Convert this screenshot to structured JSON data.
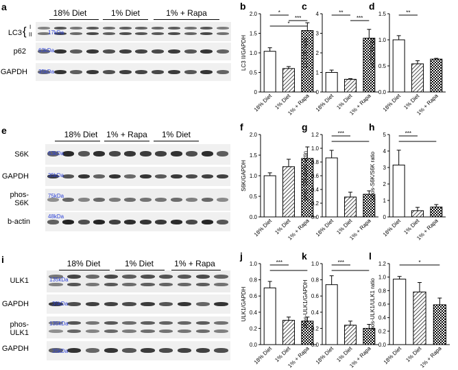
{
  "panels": [
    {
      "id": "a",
      "label": "a",
      "groups": [
        "18% Diet",
        "1% Diet",
        "1% + Rapa"
      ],
      "rows": [
        {
          "label": "LC3",
          "sub": [
            "I",
            "II"
          ],
          "kda": "17kDa"
        },
        {
          "label": "p62",
          "kda": "63kDa"
        },
        {
          "label": "GAPDH",
          "kda": "35kDa"
        }
      ]
    },
    {
      "id": "e",
      "label": "e",
      "groups": [
        "18% Diet",
        "1% + Rapa",
        "1% Diet"
      ],
      "rows": [
        {
          "label": "S6K",
          "kda": "63kDa"
        },
        {
          "label": "GAPDH",
          "kda": "35kDa"
        },
        {
          "label": "phos-\nS6K",
          "kda": "75kDa"
        },
        {
          "label": "b-actin",
          "kda": "48kDa"
        }
      ]
    },
    {
      "id": "i",
      "label": "i",
      "groups": [
        "18% Diet",
        "1% Diet",
        "1% + Rapa"
      ],
      "rows": [
        {
          "label": "ULK1",
          "kda": "135kDa"
        },
        {
          "label": "GAPDH",
          "kda": "35kDa"
        },
        {
          "label": "phos-\nULK1",
          "kda": "135kDa"
        },
        {
          "label": "GAPDH",
          "kda": "35kDa"
        }
      ]
    }
  ],
  "chart_data": [
    {
      "id": "b",
      "label": "b",
      "type": "bar",
      "categories": [
        "18% Diet",
        "1% Diet",
        "1% + Rapa"
      ],
      "values": [
        1.04,
        0.6,
        1.57
      ],
      "errors": [
        0.09,
        0.05,
        0.2
      ],
      "ylabel": "LC3 II/GAPDH",
      "ylim": [
        0,
        2.0
      ],
      "yticks": [
        "0",
        "0.5",
        "1.0",
        "1.5",
        "2.0"
      ],
      "sig": [
        {
          "from": 0,
          "to": 1,
          "label": "*"
        },
        {
          "from": 1,
          "to": 2,
          "label": "***"
        },
        {
          "from": 0,
          "to": 2,
          "label": "*"
        }
      ]
    },
    {
      "id": "c",
      "label": "c",
      "type": "bar",
      "categories": [
        "18% Diet",
        "1% Diet",
        "1% + Rapa"
      ],
      "values": [
        1.0,
        0.65,
        2.75
      ],
      "errors": [
        0.12,
        0.03,
        0.45
      ],
      "ylabel": "LC3 I/II ratio",
      "ylim": [
        0,
        4
      ],
      "yticks": [
        "0",
        "1",
        "2",
        "3",
        "4"
      ],
      "sig": [
        {
          "from": 0,
          "to": 1,
          "label": "**"
        },
        {
          "from": 1,
          "to": 2,
          "label": "***"
        }
      ]
    },
    {
      "id": "d",
      "label": "d",
      "type": "bar",
      "categories": [
        "18% Diet",
        "1% Diet",
        "1% + Rapa"
      ],
      "values": [
        1.0,
        0.54,
        0.63
      ],
      "errors": [
        0.08,
        0.06,
        0.015
      ],
      "ylabel": "p62/GAPDH",
      "ylim": [
        0,
        1.5
      ],
      "yticks": [
        "0.0",
        "0.5",
        "1.0",
        "1.5"
      ],
      "sig": [
        {
          "from": 0,
          "to": 1,
          "label": "**"
        }
      ]
    },
    {
      "id": "f",
      "label": "f",
      "type": "bar",
      "categories": [
        "18% Diet",
        "1% Diet",
        "1% + Rapa"
      ],
      "values": [
        1.0,
        1.22,
        1.42
      ],
      "errors": [
        0.07,
        0.18,
        0.28
      ],
      "ylabel": "S6K/GAPDH",
      "ylim": [
        0,
        2.0
      ],
      "yticks": [
        "0.0",
        "0.5",
        "1.0",
        "1.5",
        "2.0"
      ],
      "sig": []
    },
    {
      "id": "g",
      "label": "g",
      "type": "bar",
      "categories": [
        "18% Diet",
        "1% Diet",
        "1% + Rapa"
      ],
      "values": [
        0.86,
        0.29,
        0.33
      ],
      "errors": [
        0.11,
        0.07,
        0.05
      ],
      "ylabel": "phos-S6K/beta actin",
      "ylim": [
        0,
        1.2
      ],
      "yticks": [
        "0.0",
        "0.2",
        "0.4",
        "0.6",
        "0.8",
        "1.0",
        "1.2"
      ],
      "sig": [
        {
          "from": 0,
          "to": 1,
          "label": "***"
        },
        {
          "from": 0,
          "to": 2,
          "label": ""
        }
      ]
    },
    {
      "id": "h",
      "label": "h",
      "type": "bar",
      "categories": [
        "18% Diet",
        "1% Diet",
        "1% + Rapa"
      ],
      "values": [
        3.15,
        0.38,
        0.6
      ],
      "errors": [
        0.9,
        0.2,
        0.15
      ],
      "ylabel": "phos-S6K/S6K ratio",
      "ylim": [
        0,
        5
      ],
      "yticks": [
        "0",
        "1",
        "2",
        "3",
        "4",
        "5"
      ],
      "sig": [
        {
          "from": 0,
          "to": 1,
          "label": "***"
        },
        {
          "from": 0,
          "to": 2,
          "label": ""
        }
      ]
    },
    {
      "id": "j",
      "label": "j",
      "type": "bar",
      "categories": [
        "18% Diet",
        "1% Diet",
        "1% + Rapa"
      ],
      "values": [
        0.7,
        0.3,
        0.29
      ],
      "errors": [
        0.08,
        0.04,
        0.05
      ],
      "ylabel": "ULK1/GAPDH",
      "ylim": [
        0,
        1.0
      ],
      "yticks": [
        "0.0",
        "0.2",
        "0.4",
        "0.6",
        "0.8",
        "1.0"
      ],
      "sig": [
        {
          "from": 0,
          "to": 1,
          "label": "***"
        },
        {
          "from": 0,
          "to": 2,
          "label": ""
        }
      ]
    },
    {
      "id": "k",
      "label": "k",
      "type": "bar",
      "categories": [
        "18% Diet",
        "1% Diet",
        "1% + Rapa"
      ],
      "values": [
        0.74,
        0.24,
        0.2
      ],
      "errors": [
        0.11,
        0.05,
        0.05
      ],
      "ylabel": "phos-ULK1/GAPDH",
      "ylim": [
        0,
        1.0
      ],
      "yticks": [
        "0.0",
        "0.2",
        "0.4",
        "0.6",
        "0.8",
        "1.0"
      ],
      "sig": [
        {
          "from": 0,
          "to": 1,
          "label": "***"
        },
        {
          "from": 0,
          "to": 2,
          "label": ""
        }
      ]
    },
    {
      "id": "l",
      "label": "l",
      "type": "bar",
      "categories": [
        "18% Diet",
        "1% Diet",
        "1% + Rapa"
      ],
      "values": [
        0.97,
        0.78,
        0.59
      ],
      "errors": [
        0.04,
        0.14,
        0.1
      ],
      "ylabel": "pos-ULK1/ULK1 ratio",
      "ylim": [
        0,
        1.2
      ],
      "yticks": [
        "0.0",
        "0.2",
        "0.4",
        "0.6",
        "0.8",
        "1.0",
        "1.2"
      ],
      "sig": [
        {
          "from": 0,
          "to": 2,
          "label": "*"
        }
      ]
    }
  ]
}
